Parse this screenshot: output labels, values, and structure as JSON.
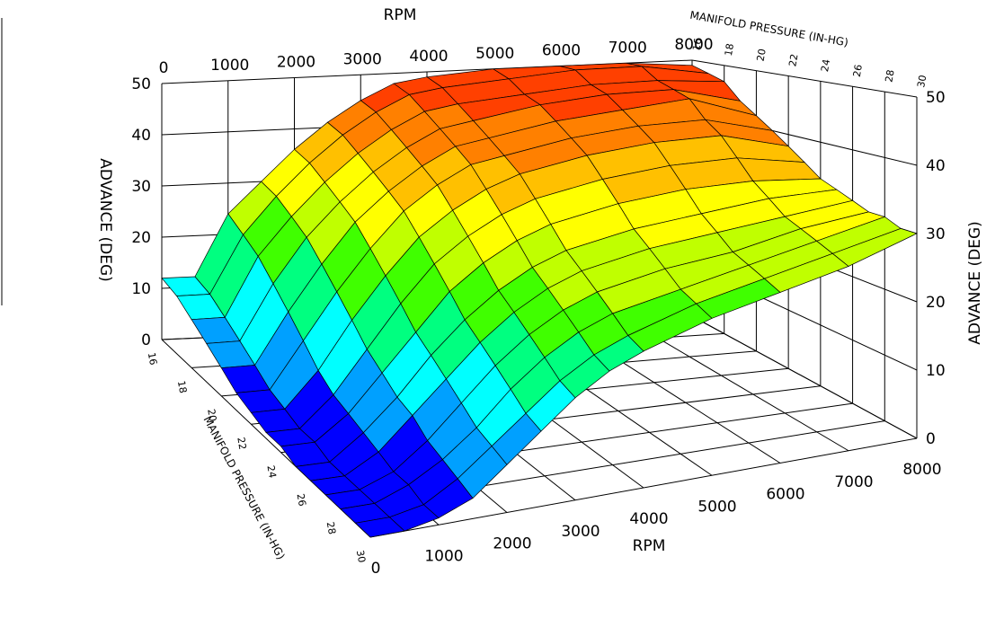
{
  "chart_data": {
    "type": "surface",
    "x_axis": {
      "label": "RPM",
      "values": [
        0,
        500,
        1000,
        1500,
        2000,
        2500,
        3000,
        3500,
        4000,
        5000,
        6000,
        7000,
        8000
      ],
      "tick_labels": [
        "0",
        "1000",
        "2000",
        "3000",
        "4000",
        "5000",
        "6000",
        "7000",
        "8000"
      ],
      "tick_values": [
        0,
        1000,
        2000,
        3000,
        4000,
        5000,
        6000,
        7000,
        8000
      ],
      "range": [
        0,
        8000
      ]
    },
    "y_axis": {
      "label": "MANIFOLD PRESSURE (IN-HG)",
      "values": [
        16,
        17,
        18,
        19,
        20,
        21,
        22,
        23,
        24,
        25,
        26,
        27,
        28,
        29,
        30
      ],
      "tick_labels": [
        "16",
        "18",
        "20",
        "22",
        "24",
        "26",
        "28",
        "30"
      ],
      "tick_values": [
        16,
        18,
        20,
        22,
        24,
        26,
        28,
        30
      ],
      "range": [
        16,
        30
      ]
    },
    "z_axis": {
      "label": "ADVANCE (DEG)",
      "tick_labels": [
        "0",
        "10",
        "20",
        "30",
        "40",
        "50"
      ],
      "tick_values": [
        0,
        10,
        20,
        30,
        40,
        50
      ],
      "range": [
        0,
        50
      ]
    },
    "z": [
      [
        12,
        12,
        24,
        30,
        36,
        41,
        45,
        48,
        49,
        50,
        50,
        50,
        49
      ],
      [
        11,
        11,
        22,
        29,
        35,
        40,
        44,
        47,
        48,
        49,
        50,
        50,
        48
      ],
      [
        9,
        9,
        20,
        27,
        33,
        38,
        42,
        45,
        46,
        47,
        48,
        48,
        47
      ],
      [
        7,
        7,
        17,
        25,
        31,
        36,
        40,
        43,
        44,
        46,
        47,
        47,
        44
      ],
      [
        5,
        5,
        14,
        22,
        29,
        34,
        38,
        41,
        42,
        44,
        45,
        46,
        42
      ],
      [
        3,
        3,
        11,
        19,
        26,
        32,
        36,
        39,
        40,
        42,
        43,
        43,
        40
      ],
      [
        2,
        2,
        8,
        16,
        23,
        29,
        33,
        36,
        38,
        40,
        41,
        41,
        38
      ],
      [
        1,
        1,
        6,
        13,
        20,
        26,
        30,
        33,
        35,
        37,
        38,
        38,
        36
      ],
      [
        1,
        1,
        5,
        11,
        17,
        23,
        27,
        30,
        32,
        34,
        35,
        35,
        34
      ],
      [
        0,
        0,
        4,
        9,
        15,
        20,
        24,
        27,
        29,
        31,
        32,
        33,
        33
      ],
      [
        0,
        0,
        3,
        8,
        13,
        18,
        22,
        25,
        27,
        29,
        30,
        31,
        32
      ],
      [
        0,
        0,
        2,
        6,
        11,
        16,
        20,
        23,
        25,
        27,
        28,
        30,
        31
      ],
      [
        0,
        0,
        2,
        5,
        9,
        14,
        18,
        21,
        23,
        25,
        27,
        29,
        31
      ],
      [
        0,
        0,
        1,
        4,
        8,
        12,
        16,
        19,
        21,
        24,
        26,
        28,
        30
      ],
      [
        0,
        0,
        1,
        3,
        7,
        11,
        15,
        18,
        20,
        23,
        25,
        27,
        30
      ]
    ],
    "colormap": [
      "#0000ff",
      "#00a0ff",
      "#00ffff",
      "#00ff80",
      "#40ff00",
      "#c0ff00",
      "#ffff00",
      "#ffc000",
      "#ff8000",
      "#ff4000"
    ],
    "grid": true,
    "labels": {
      "rpm_top": "RPM",
      "rpm_bottom": "RPM",
      "map_top": "MANIFOLD PRESSURE (IN-HG)",
      "map_left": "MANIFOLD PRESSURE (IN-HG)",
      "adv_left": "ADVANCE (DEG)",
      "adv_right": "ADVANCE (DEG)"
    }
  }
}
